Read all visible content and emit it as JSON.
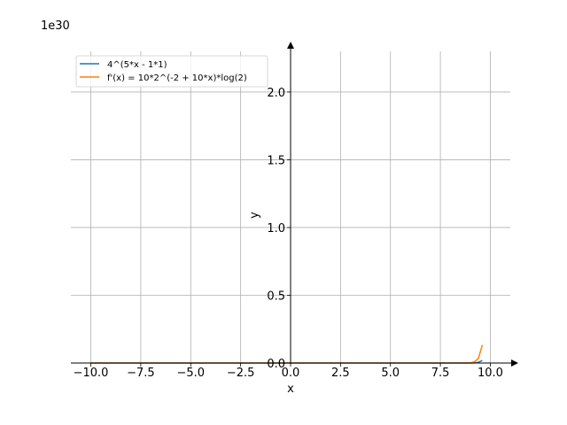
{
  "chart_data": {
    "type": "line",
    "title": "",
    "xlabel": "x",
    "ylabel": "y",
    "y_multiplier_label": "1e30",
    "xlim": [
      -11,
      11
    ],
    "ylim": [
      0,
      2.3
    ],
    "x_ticks": [
      -10.0,
      -7.5,
      -5.0,
      -2.5,
      0.0,
      2.5,
      5.0,
      7.5,
      10.0
    ],
    "x_tick_labels": [
      "−10.0",
      "−7.5",
      "−5.0",
      "−2.5",
      "0.0",
      "2.5",
      "5.0",
      "7.5",
      "10.0"
    ],
    "y_ticks": [
      0.0,
      0.5,
      1.0,
      1.5,
      2.0
    ],
    "y_tick_labels": [
      "0.0",
      "0.5",
      "1.0",
      "1.5",
      "2.0"
    ],
    "grid": true,
    "legend_position": "top-left",
    "series": [
      {
        "name": "4^(5*x - 1*1)",
        "color": "#1f77b4",
        "x": [
          -10,
          -8,
          -6,
          -4,
          -2,
          0,
          2,
          4,
          6,
          8,
          8.5,
          9,
          9.2,
          9.4,
          9.6
        ],
        "y": [
          0,
          0,
          0,
          0,
          0,
          0,
          0,
          0,
          0,
          3e-07,
          9e-06,
          0.0003,
          0.0012,
          0.0048,
          0.019
        ]
      },
      {
        "name": "f'(x) = 10*2^(-2 + 10*x)*log(2)",
        "color": "#ff7f0e",
        "x": [
          -10,
          -8,
          -6,
          -4,
          -2,
          0,
          2,
          4,
          6,
          8,
          8.5,
          9,
          9.2,
          9.4,
          9.6
        ],
        "y": [
          0,
          0,
          0,
          0,
          0,
          0,
          0,
          0,
          0,
          2e-06,
          6e-05,
          0.002,
          0.0083,
          0.033,
          0.133
        ]
      }
    ]
  }
}
